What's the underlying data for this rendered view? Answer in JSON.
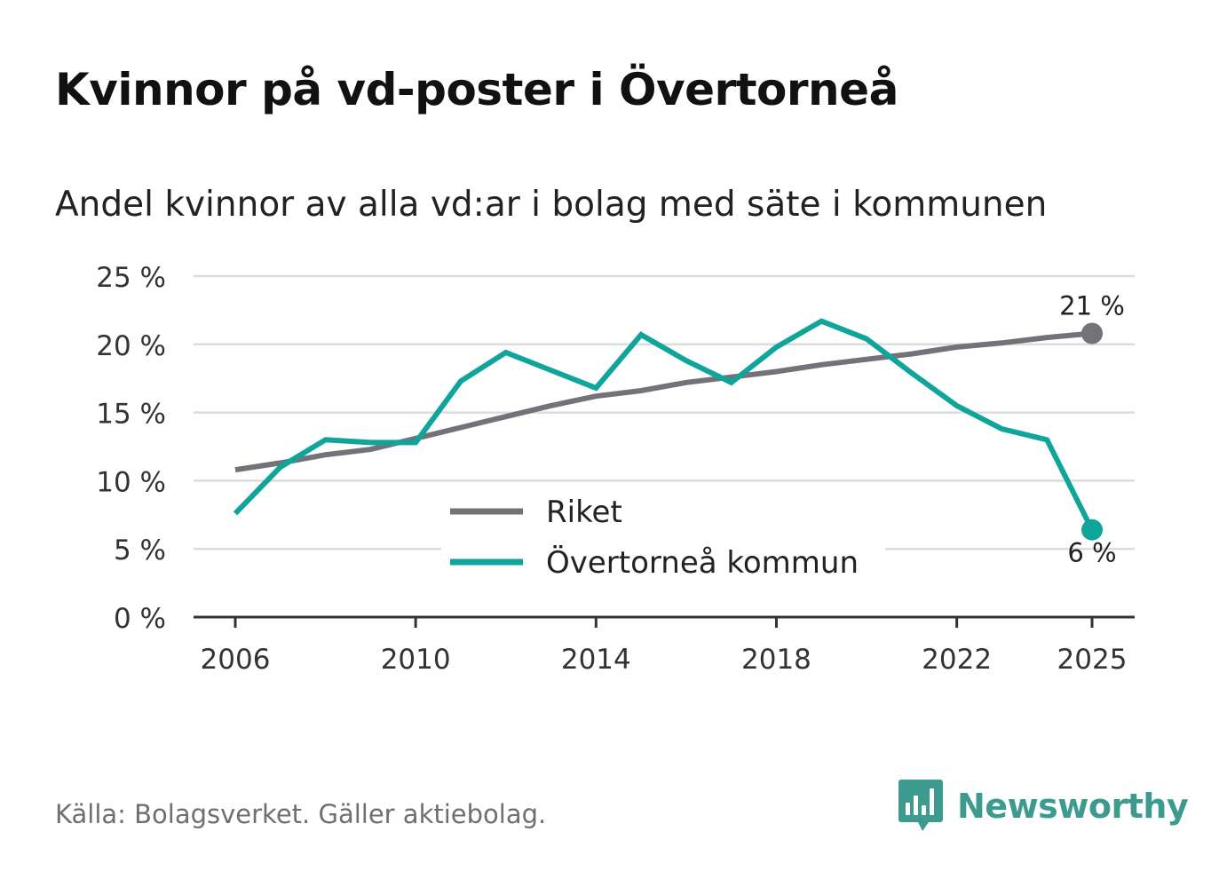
{
  "title": "Kvinnor på vd-poster i Övertorneå",
  "subtitle": "Andel kvinnor av alla vd:ar i bolag med säte i kommunen",
  "source": "Källa: Bolagsverket. Gäller aktiebolag.",
  "brand": "Newsworthy",
  "colors": {
    "riket": "#747279",
    "kommun": "#0fa59a",
    "grid": "#dcdcdc",
    "axis": "#333333"
  },
  "chart_data": {
    "type": "line",
    "title": "Kvinnor på vd-poster i Övertorneå",
    "xlabel": "",
    "ylabel": "",
    "ylim": [
      0,
      25
    ],
    "xlim": [
      2006,
      2025
    ],
    "x": [
      2006,
      2007,
      2008,
      2009,
      2010,
      2011,
      2012,
      2013,
      2014,
      2015,
      2016,
      2017,
      2018,
      2019,
      2020,
      2021,
      2022,
      2023,
      2024,
      2025
    ],
    "x_ticks": [
      "2006",
      "2010",
      "2014",
      "2018",
      "2022",
      "2025"
    ],
    "y_ticks": [
      "0 %",
      "5 %",
      "10 %",
      "15 %",
      "20 %",
      "25 %"
    ],
    "series": [
      {
        "name": "Riket",
        "values": [
          10.8,
          11.3,
          11.9,
          12.3,
          13.1,
          13.9,
          14.7,
          15.5,
          16.2,
          16.6,
          17.2,
          17.6,
          18.0,
          18.5,
          18.9,
          19.3,
          19.8,
          20.1,
          20.5,
          20.8
        ],
        "end_label": "21 %"
      },
      {
        "name": "Övertorneå kommun",
        "values": [
          7.6,
          11.0,
          13.0,
          12.8,
          12.8,
          17.3,
          19.4,
          18.1,
          16.8,
          20.7,
          18.8,
          17.2,
          19.8,
          21.7,
          20.4,
          17.9,
          15.5,
          13.8,
          13.0,
          6.4
        ],
        "end_label": "6 %"
      }
    ],
    "legend": [
      "Riket",
      "Övertorneå kommun"
    ],
    "legend_position": "bottom-center",
    "grid": true
  }
}
